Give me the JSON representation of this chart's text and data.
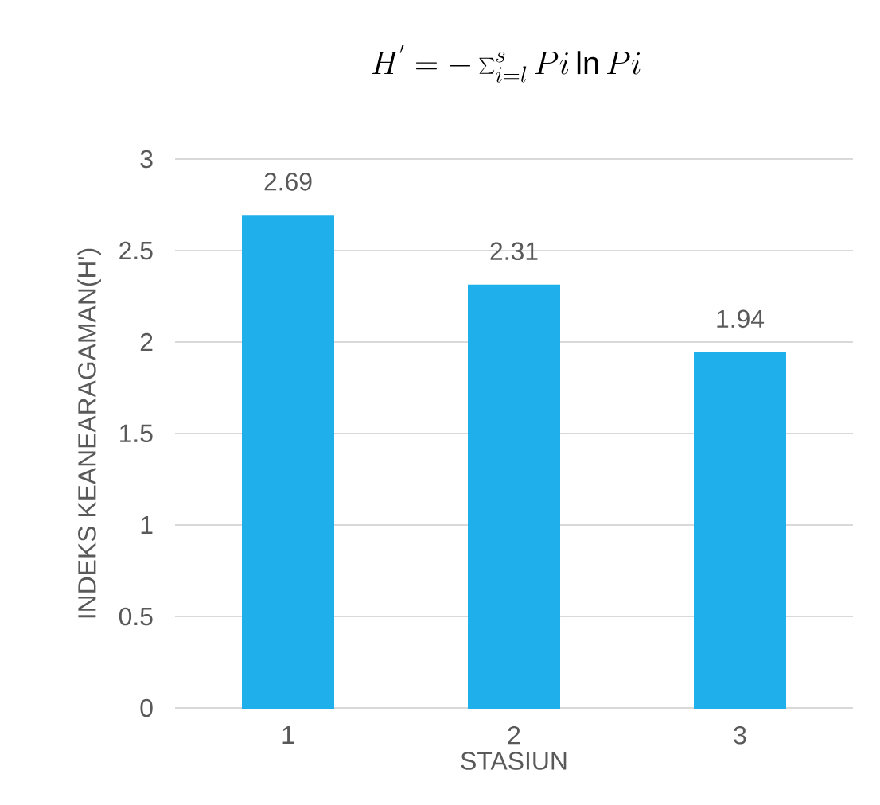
{
  "chart_data": {
    "type": "bar",
    "title": "H^{'} = -\\sum_{i=l}^{s} Pi \\ln Pi",
    "xlabel": "STASIUN",
    "ylabel": "INDEKS KEANEARAGAMAN(H')",
    "categories": [
      "1",
      "2",
      "3"
    ],
    "values": [
      2.69,
      2.31,
      1.94
    ],
    "color": "#1fb0ec",
    "ylim": [
      0,
      3
    ],
    "yticks": [
      0,
      0.5,
      1,
      1.5,
      2,
      2.5,
      3
    ],
    "grid": "y",
    "data_labels": true
  }
}
